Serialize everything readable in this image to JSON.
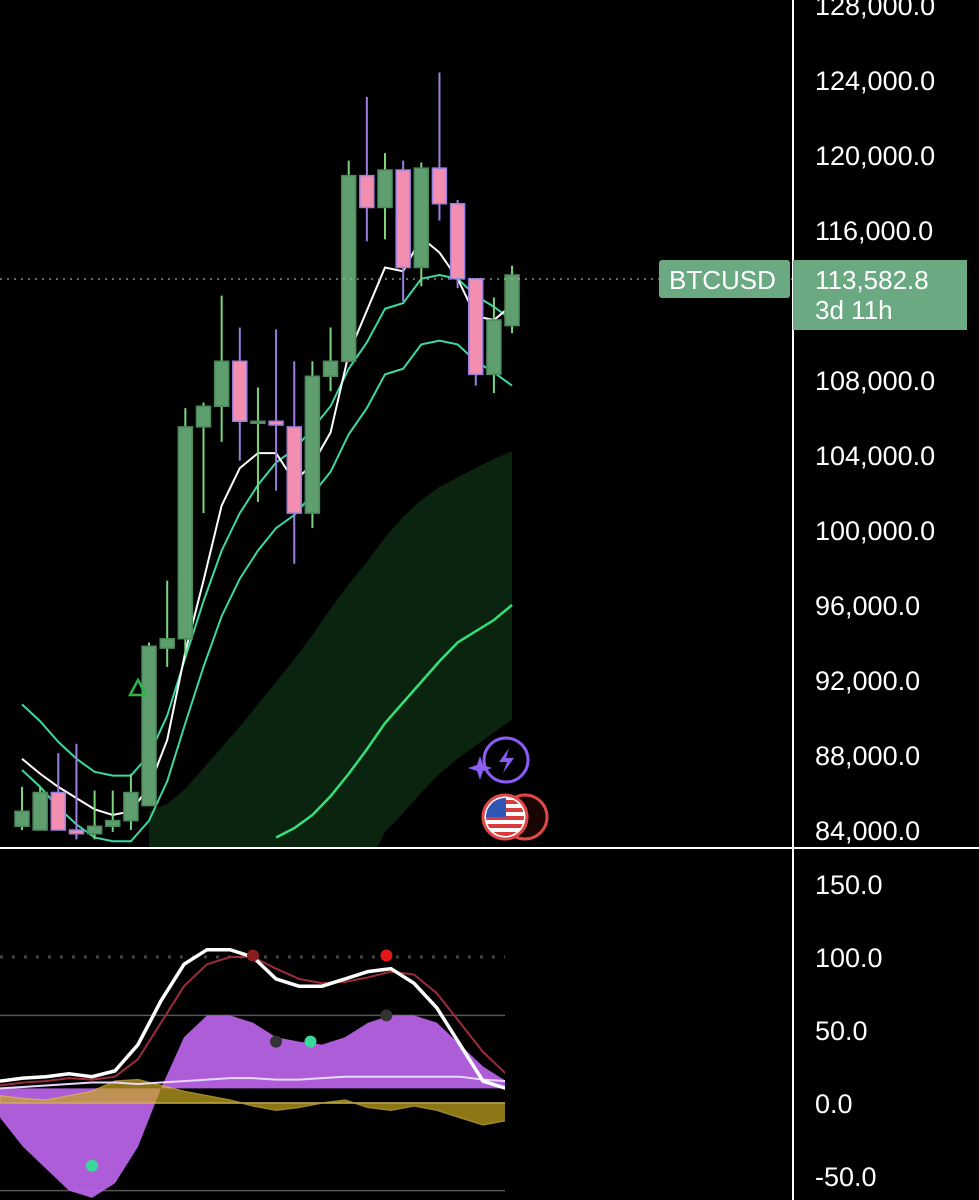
{
  "symbol_tag": "BTCUSD",
  "last_price": "113,582.8",
  "countdown": "3d 11h",
  "colors": {
    "up": "#5f9e6e",
    "down": "#f28fb1",
    "wick_up": "#7bd67b",
    "wick_down": "#9a7fe0",
    "tag_bg": "#6aa982",
    "ema_fast": "#ffffff",
    "ema_mid": "#3ad9a6",
    "ema_slow": "#35e07a",
    "band_fill": "#0b2610",
    "osc_fill": "#c067f0",
    "osc_line": "#ffffff",
    "osc_signal": "#9b2d3a",
    "osc_yellow": "#c9a81f"
  },
  "icons": [
    "ai-spark-icon",
    "us-flag-event-icon"
  ],
  "chart_data": [
    {
      "type": "candlestick",
      "title": "",
      "y_ticks": [
        "128,000.0",
        "124,000.0",
        "120,000.0",
        "116,000.0",
        "108,000.0",
        "104,000.0",
        "100,000.0",
        "96,000.0",
        "92,000.0",
        "88,000.0",
        "84,000.0"
      ],
      "ylim": [
        83500,
        128500
      ],
      "candles": [
        {
          "o": 84200,
          "h": 86300,
          "l": 84000,
          "c": 85000
        },
        {
          "o": 84000,
          "h": 86300,
          "l": 84000,
          "c": 86000
        },
        {
          "o": 86000,
          "h": 88100,
          "l": 84000,
          "c": 84000
        },
        {
          "o": 84000,
          "h": 88600,
          "l": 83500,
          "c": 83800
        },
        {
          "o": 83800,
          "h": 86100,
          "l": 83500,
          "c": 84200
        },
        {
          "o": 84200,
          "h": 86100,
          "l": 83900,
          "c": 84500
        },
        {
          "o": 84500,
          "h": 87000,
          "l": 84000,
          "c": 86000
        },
        {
          "o": 85300,
          "h": 94000,
          "l": 85300,
          "c": 93800
        },
        {
          "o": 93700,
          "h": 97300,
          "l": 92700,
          "c": 94200
        },
        {
          "o": 94200,
          "h": 106500,
          "l": 93300,
          "c": 105500
        },
        {
          "o": 105500,
          "h": 106800,
          "l": 100900,
          "c": 106600
        },
        {
          "o": 106600,
          "h": 112500,
          "l": 104700,
          "c": 109000
        },
        {
          "o": 109000,
          "h": 110800,
          "l": 103700,
          "c": 105800
        },
        {
          "o": 105800,
          "h": 107600,
          "l": 101500,
          "c": 105800
        },
        {
          "o": 105800,
          "h": 110700,
          "l": 102100,
          "c": 105600
        },
        {
          "o": 105500,
          "h": 109000,
          "l": 98200,
          "c": 100900
        },
        {
          "o": 100900,
          "h": 109000,
          "l": 100100,
          "c": 108200
        },
        {
          "o": 108200,
          "h": 110800,
          "l": 107400,
          "c": 109000
        },
        {
          "o": 109000,
          "h": 119700,
          "l": 109000,
          "c": 118900
        },
        {
          "o": 118900,
          "h": 123100,
          "l": 115400,
          "c": 117200
        },
        {
          "o": 117200,
          "h": 120100,
          "l": 115500,
          "c": 119200
        },
        {
          "o": 119200,
          "h": 119700,
          "l": 112200,
          "c": 114000
        },
        {
          "o": 114000,
          "h": 119600,
          "l": 113000,
          "c": 119300
        },
        {
          "o": 119300,
          "h": 124400,
          "l": 116500,
          "c": 117400
        },
        {
          "o": 117400,
          "h": 117600,
          "l": 112900,
          "c": 113400
        },
        {
          "o": 113400,
          "h": 113400,
          "l": 107700,
          "c": 108300
        },
        {
          "o": 108300,
          "h": 112400,
          "l": 107300,
          "c": 111200
        },
        {
          "o": 110900,
          "h": 114100,
          "l": 110500,
          "c": 113600
        }
      ],
      "ema_fast": [
        87800,
        87000,
        86300,
        85700,
        85100,
        84800,
        85000,
        86300,
        88800,
        93500,
        97300,
        101300,
        103300,
        104100,
        104100,
        102600,
        103500,
        105200,
        109400,
        111700,
        114000,
        113800,
        115600,
        114800,
        113400,
        111400,
        111200,
        112000
      ],
      "ema_mid": [
        90700,
        89800,
        88700,
        87800,
        87100,
        86900,
        86900,
        88000,
        90100,
        93200,
        96200,
        98900,
        100900,
        102400,
        103600,
        104300,
        105400,
        106600,
        108600,
        110000,
        111800,
        112100,
        113400,
        113600,
        113400,
        112500,
        111900,
        111200
      ],
      "ema_slow_upper": [
        null,
        null,
        null,
        null,
        null,
        null,
        null,
        85000,
        85400,
        86200,
        87300,
        88400,
        89500,
        90700,
        91900,
        93100,
        94400,
        95800,
        97100,
        98300,
        99600,
        100700,
        101600,
        102300,
        102800,
        103300,
        103800,
        104200
      ],
      "ema_slow": [
        null,
        null,
        null,
        null,
        null,
        null,
        null,
        null,
        null,
        null,
        null,
        null,
        null,
        null,
        83600,
        84100,
        84800,
        85800,
        87000,
        88300,
        89700,
        90800,
        91900,
        93000,
        94000,
        94600,
        95200,
        96000
      ],
      "ema_slow_lower": [
        null,
        null,
        null,
        null,
        null,
        null,
        null,
        null,
        null,
        null,
        null,
        null,
        null,
        null,
        null,
        null,
        null,
        null,
        null,
        null,
        83900,
        84900,
        86000,
        87000,
        87800,
        88500,
        89200,
        89900
      ],
      "buy_marker_index": 7
    },
    {
      "type": "area",
      "title": "",
      "y_ticks": [
        "150.0",
        "100.0",
        "50.0",
        "0.0",
        "-50.0"
      ],
      "ylim": [
        -55,
        160
      ],
      "osc_line": [
        15,
        17,
        18,
        20,
        18,
        22,
        40,
        70,
        95,
        105,
        105,
        100,
        85,
        80,
        80,
        85,
        90,
        92,
        82,
        65,
        40,
        15,
        10
      ],
      "osc_signal": [
        12,
        14,
        15,
        17,
        16,
        18,
        30,
        55,
        80,
        95,
        100,
        100,
        92,
        85,
        82,
        83,
        86,
        90,
        88,
        75,
        55,
        35,
        20
      ],
      "osc_fill": [
        -10,
        -30,
        -45,
        -60,
        -65,
        -55,
        -30,
        10,
        45,
        60,
        60,
        55,
        45,
        42,
        40,
        45,
        55,
        60,
        60,
        55,
        40,
        25,
        15
      ],
      "osc_flat": [
        10,
        11,
        12,
        13,
        14,
        14,
        13,
        14,
        15,
        16,
        17,
        17,
        16,
        16,
        17,
        18,
        18,
        18,
        18,
        18,
        18,
        16,
        15
      ],
      "osc_yellow": [
        5,
        3,
        2,
        5,
        8,
        15,
        16,
        12,
        8,
        5,
        2,
        -2,
        -5,
        -3,
        0,
        2,
        -3,
        -5,
        -2,
        -5,
        -10,
        -15,
        -12
      ]
    }
  ]
}
